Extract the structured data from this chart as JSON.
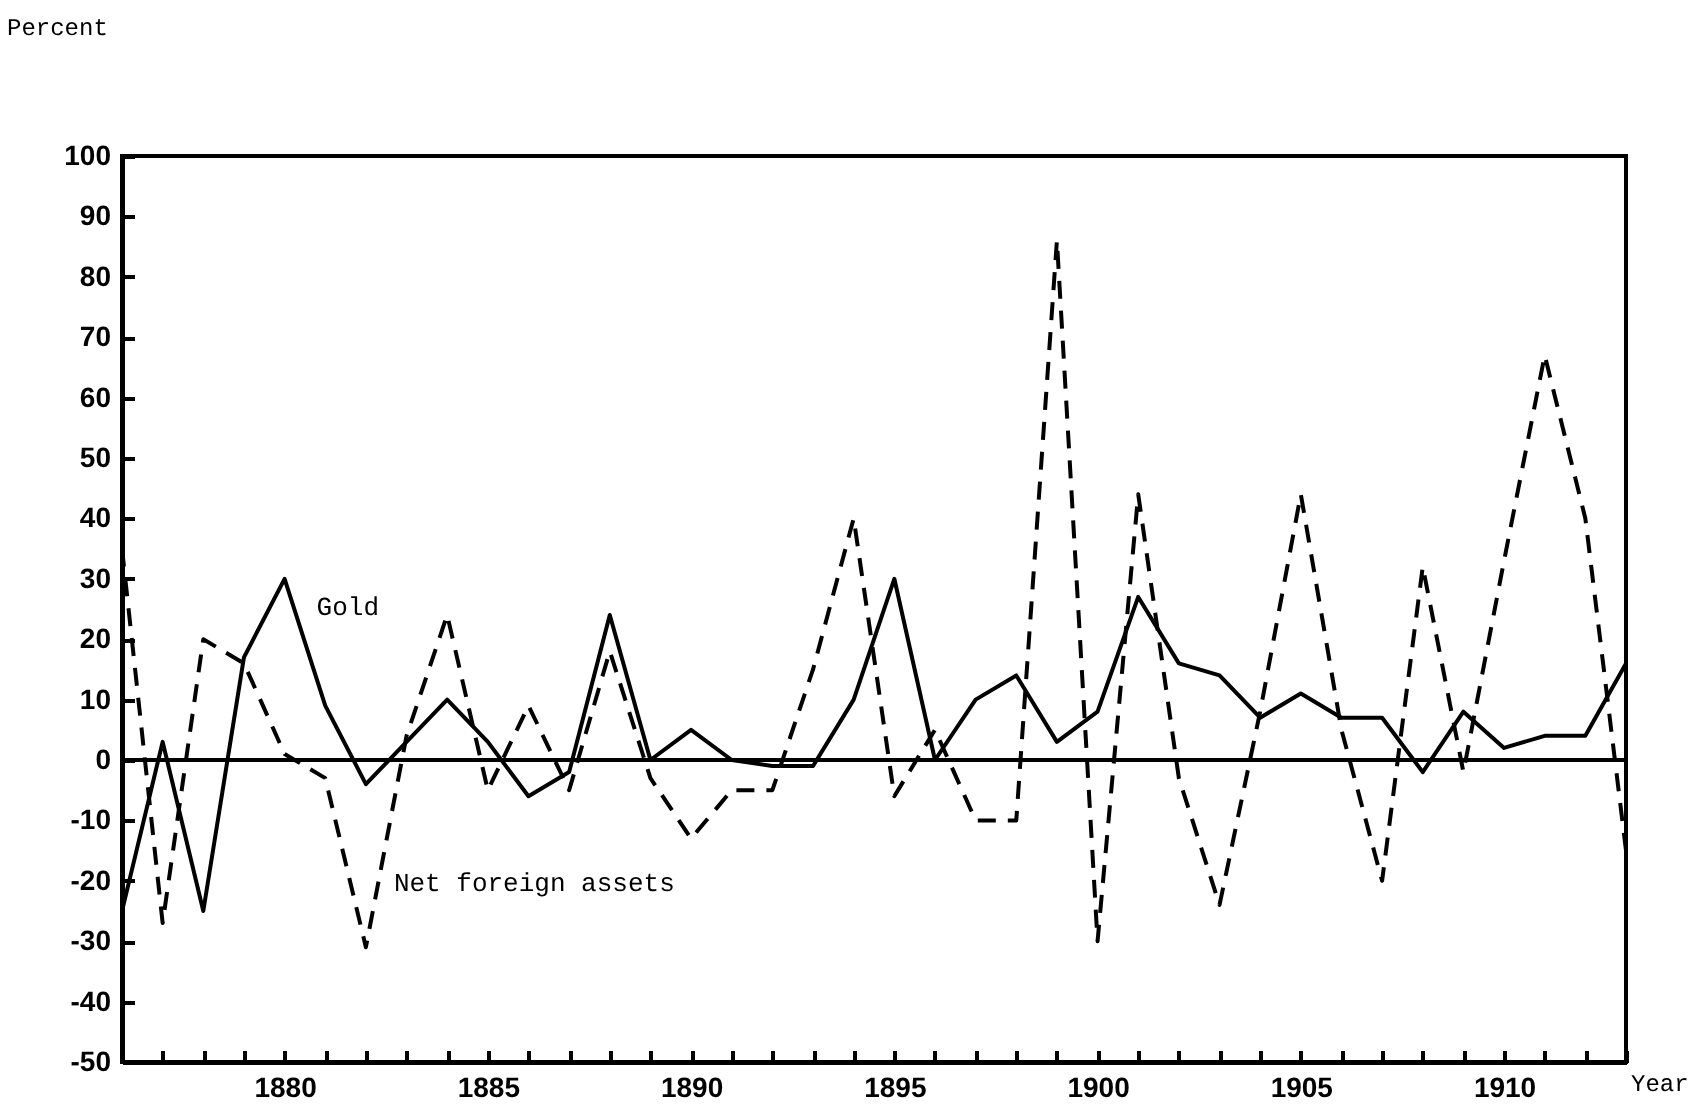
{
  "chart_data": {
    "type": "line",
    "xlabel": "Year",
    "ylabel": "Percent",
    "x": [
      1876,
      1877,
      1878,
      1879,
      1880,
      1881,
      1882,
      1883,
      1884,
      1885,
      1886,
      1887,
      1888,
      1889,
      1890,
      1891,
      1892,
      1893,
      1894,
      1895,
      1896,
      1897,
      1898,
      1899,
      1900,
      1901,
      1902,
      1903,
      1904,
      1905,
      1906,
      1907,
      1908,
      1909,
      1910,
      1911,
      1912,
      1913
    ],
    "series": [
      {
        "name": "Gold",
        "color": "#000000",
        "line_style": "solid",
        "values": [
          -25,
          3,
          -25,
          17,
          30,
          9,
          -4,
          3,
          10,
          3,
          -6,
          -2,
          24,
          0,
          5,
          0,
          -1,
          -1,
          10,
          30,
          0,
          10,
          14,
          3,
          8,
          27,
          16,
          14,
          7,
          11,
          7,
          7,
          -2,
          8,
          2,
          4,
          4,
          16
        ]
      },
      {
        "name": "Net foreign assets",
        "color": "#000000",
        "line_style": "dashed",
        "values": [
          35,
          -27,
          20,
          16,
          1,
          -3,
          -31,
          4,
          24,
          -5,
          9,
          -5,
          18,
          -3,
          -13,
          -5,
          -5,
          15,
          40,
          -6,
          5,
          -10,
          -10,
          86,
          -30,
          44,
          -3,
          -24,
          8,
          44,
          5,
          -20,
          32,
          -2,
          33,
          67,
          40,
          -15
        ]
      }
    ],
    "xlim": [
      1876,
      1913
    ],
    "xticks": [
      {
        "value": 1876,
        "label": null
      },
      {
        "value": 1877,
        "label": null
      },
      {
        "value": 1878,
        "label": null
      },
      {
        "value": 1879,
        "label": null
      },
      1880,
      {
        "value": 1881,
        "label": null
      },
      {
        "value": 1882,
        "label": null
      },
      {
        "value": 1883,
        "label": null
      },
      {
        "value": 1884,
        "label": null
      },
      1885,
      {
        "value": 1886,
        "label": null
      },
      {
        "value": 1887,
        "label": null
      },
      {
        "value": 1888,
        "label": null
      },
      {
        "value": 1889,
        "label": null
      },
      1890,
      {
        "value": 1891,
        "label": null
      },
      {
        "value": 1892,
        "label": null
      },
      {
        "value": 1893,
        "label": null
      },
      {
        "value": 1894,
        "label": null
      },
      1895,
      {
        "value": 1896,
        "label": null
      },
      {
        "value": 1897,
        "label": null
      },
      {
        "value": 1898,
        "label": null
      },
      {
        "value": 1899,
        "label": null
      },
      1900,
      {
        "value": 1901,
        "label": null
      },
      {
        "value": 1902,
        "label": null
      },
      {
        "value": 1903,
        "label": null
      },
      {
        "value": 1904,
        "label": null
      },
      1905,
      {
        "value": 1906,
        "label": null
      },
      {
        "value": 1907,
        "label": null
      },
      {
        "value": 1908,
        "label": null
      },
      {
        "value": 1909,
        "label": null
      },
      1910,
      {
        "value": 1911,
        "label": null
      },
      {
        "value": 1912,
        "label": null
      },
      {
        "value": 1913,
        "label": null
      }
    ],
    "ylim": [
      -50,
      100
    ],
    "yticks": [
      -50,
      -40,
      -30,
      -20,
      -10,
      0,
      10,
      20,
      30,
      40,
      50,
      60,
      70,
      80,
      90,
      100
    ],
    "ref_lines": [
      {
        "axis": "y",
        "value": 0,
        "line_style": "solid"
      }
    ],
    "grid": false,
    "marker": "none"
  }
}
